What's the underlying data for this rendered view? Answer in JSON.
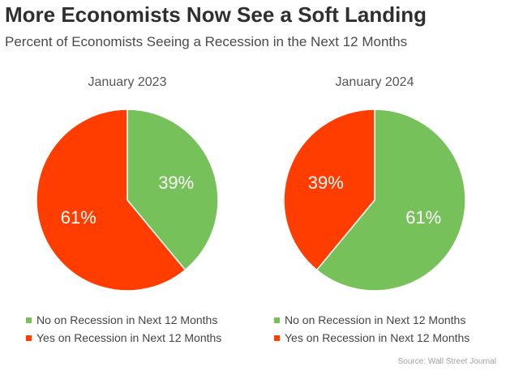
{
  "title": "More Economists Now See a Soft Landing",
  "subtitle": "Percent of Economists Seeing a Recession in the Next 12 Months",
  "source": "Source: Wall Street Journal",
  "colors": {
    "no": "#77c15a",
    "yes": "#ff3d00"
  },
  "chart_data": [
    {
      "type": "pie",
      "title": "January 2023",
      "labels": [
        "No on Recession in Next 12 Months",
        "Yes on Recession in Next 12 Months"
      ],
      "values": [
        39,
        61
      ],
      "data_labels": [
        "39%",
        "61%"
      ],
      "legend": "bottom"
    },
    {
      "type": "pie",
      "title": "January 2024",
      "labels": [
        "No on Recession in Next 12 Months",
        "Yes on Recession in Next 12 Months"
      ],
      "values": [
        61,
        39
      ],
      "data_labels": [
        "61%",
        "39%"
      ],
      "legend": "bottom"
    }
  ]
}
